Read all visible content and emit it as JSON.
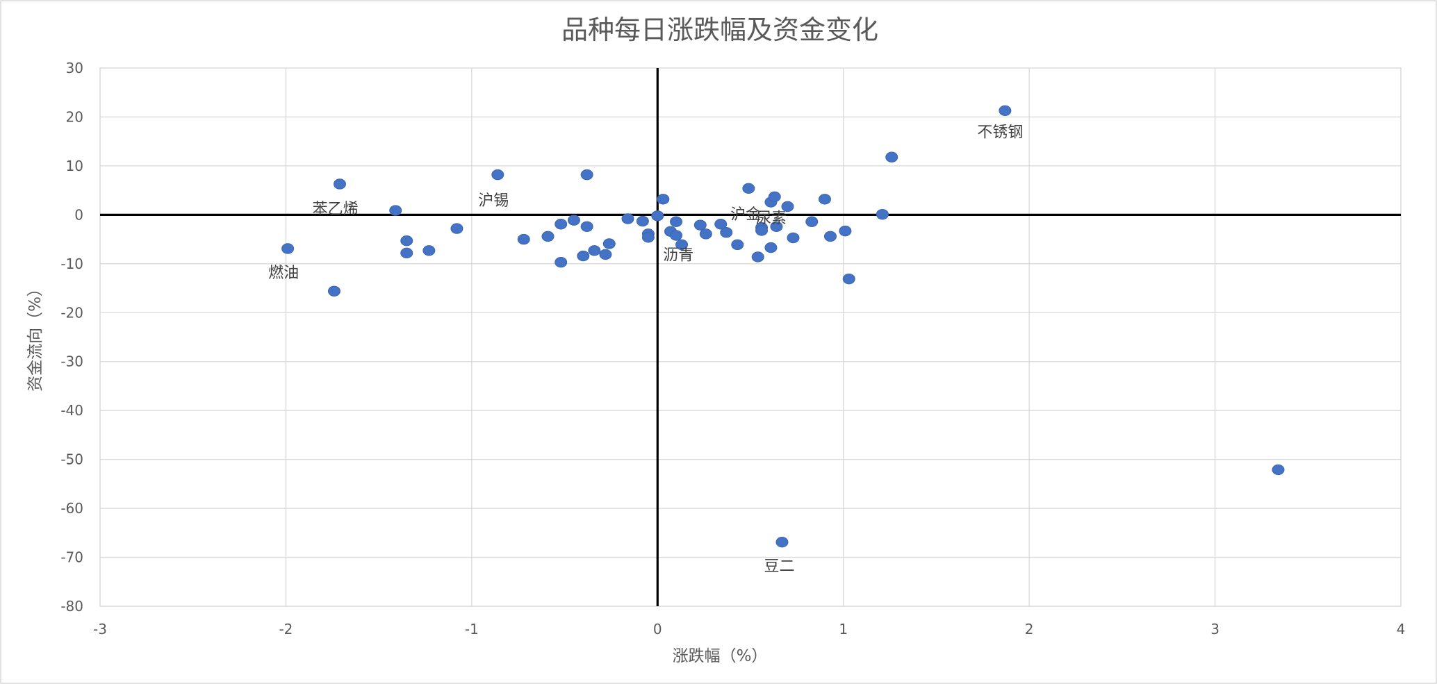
{
  "chart_data": {
    "type": "scatter",
    "title": "品种每日涨跌幅及资金变化",
    "xlabel": "涨跌幅（%）",
    "ylabel": "资金流向（%）",
    "xlim": [
      -3,
      4
    ],
    "ylim": [
      -80,
      30
    ],
    "xticks": [
      -3,
      -2,
      -1,
      0,
      1,
      2,
      3,
      4
    ],
    "yticks": [
      30,
      20,
      10,
      0,
      -10,
      -20,
      -30,
      -40,
      -50,
      -60,
      -70,
      -80
    ],
    "grid": true,
    "legend": "none",
    "marker_color": "#4472c4",
    "points": [
      {
        "x": 1.87,
        "y": 21.3,
        "label": "不锈钢"
      },
      {
        "x": 1.26,
        "y": 11.8,
        "label": ""
      },
      {
        "x": -1.71,
        "y": 6.3,
        "label": ""
      },
      {
        "x": -0.86,
        "y": 8.2,
        "label": ""
      },
      {
        "x": -0.38,
        "y": 8.2,
        "label": ""
      },
      {
        "x": -1.41,
        "y": 0.9,
        "label": ""
      },
      {
        "x": -1.99,
        "y": -6.9,
        "label": "燃油"
      },
      {
        "x": -1.74,
        "y": -15.6,
        "label": ""
      },
      {
        "x": -1.35,
        "y": -5.3,
        "label": ""
      },
      {
        "x": -1.35,
        "y": -7.8,
        "label": ""
      },
      {
        "x": -1.23,
        "y": -7.3,
        "label": ""
      },
      {
        "x": -1.08,
        "y": -2.8,
        "label": ""
      },
      {
        "x": -0.72,
        "y": -5.0,
        "label": ""
      },
      {
        "x": -0.59,
        "y": -4.4,
        "label": ""
      },
      {
        "x": -0.52,
        "y": -1.9,
        "label": ""
      },
      {
        "x": -0.52,
        "y": -9.7,
        "label": ""
      },
      {
        "x": -0.45,
        "y": -1.1,
        "label": ""
      },
      {
        "x": -0.38,
        "y": -2.4,
        "label": ""
      },
      {
        "x": -0.4,
        "y": -8.4,
        "label": ""
      },
      {
        "x": -0.34,
        "y": -7.3,
        "label": ""
      },
      {
        "x": -0.28,
        "y": -8.1,
        "label": ""
      },
      {
        "x": -0.26,
        "y": -5.9,
        "label": ""
      },
      {
        "x": -0.16,
        "y": -0.8,
        "label": ""
      },
      {
        "x": -0.08,
        "y": -1.3,
        "label": ""
      },
      {
        "x": -0.05,
        "y": -3.9,
        "label": ""
      },
      {
        "x": -0.05,
        "y": -4.6,
        "label": ""
      },
      {
        "x": 0.0,
        "y": -4.1,
        "label": "沥青"
      },
      {
        "x": 0.0,
        "y": -0.2,
        "label": ""
      },
      {
        "x": 0.03,
        "y": 3.2,
        "label": ""
      },
      {
        "x": 0.07,
        "y": -3.4,
        "label": ""
      },
      {
        "x": 0.1,
        "y": -1.4,
        "label": ""
      },
      {
        "x": 0.1,
        "y": -4.2,
        "label": ""
      },
      {
        "x": 0.13,
        "y": -6.1,
        "label": ""
      },
      {
        "x": 0.23,
        "y": -2.1,
        "label": ""
      },
      {
        "x": 0.26,
        "y": -3.9,
        "label": ""
      },
      {
        "x": 0.34,
        "y": -1.9,
        "label": ""
      },
      {
        "x": 0.37,
        "y": -0.4,
        "label": "沪金"
      },
      {
        "x": 0.37,
        "y": -3.6,
        "label": ""
      },
      {
        "x": 0.43,
        "y": -6.1,
        "label": ""
      },
      {
        "x": 0.49,
        "y": 5.4,
        "label": ""
      },
      {
        "x": 0.54,
        "y": -8.6,
        "label": ""
      },
      {
        "x": 0.56,
        "y": 1.1,
        "label": "尿素"
      },
      {
        "x": 0.56,
        "y": -2.6,
        "label": ""
      },
      {
        "x": 0.56,
        "y": -3.2,
        "label": ""
      },
      {
        "x": 0.61,
        "y": 2.6,
        "label": ""
      },
      {
        "x": 0.63,
        "y": 3.7,
        "label": ""
      },
      {
        "x": 0.61,
        "y": -6.7,
        "label": ""
      },
      {
        "x": 0.64,
        "y": -2.4,
        "label": ""
      },
      {
        "x": 0.67,
        "y": -66.9,
        "label": "豆二"
      },
      {
        "x": 0.7,
        "y": 1.7,
        "label": ""
      },
      {
        "x": 0.73,
        "y": -4.7,
        "label": ""
      },
      {
        "x": 0.83,
        "y": -1.4,
        "label": ""
      },
      {
        "x": 0.9,
        "y": 3.2,
        "label": ""
      },
      {
        "x": 0.93,
        "y": -4.4,
        "label": ""
      },
      {
        "x": 1.01,
        "y": -3.3,
        "label": ""
      },
      {
        "x": 1.03,
        "y": -13.1,
        "label": ""
      },
      {
        "x": 1.21,
        "y": 0.1,
        "label": ""
      },
      {
        "x": 3.34,
        "y": -52.1,
        "label": ""
      },
      {
        "x": -1.7,
        "y": 1.2,
        "label": "苯乙烯"
      },
      {
        "x": -0.86,
        "y": 2.9,
        "label": "沪锡"
      }
    ]
  }
}
